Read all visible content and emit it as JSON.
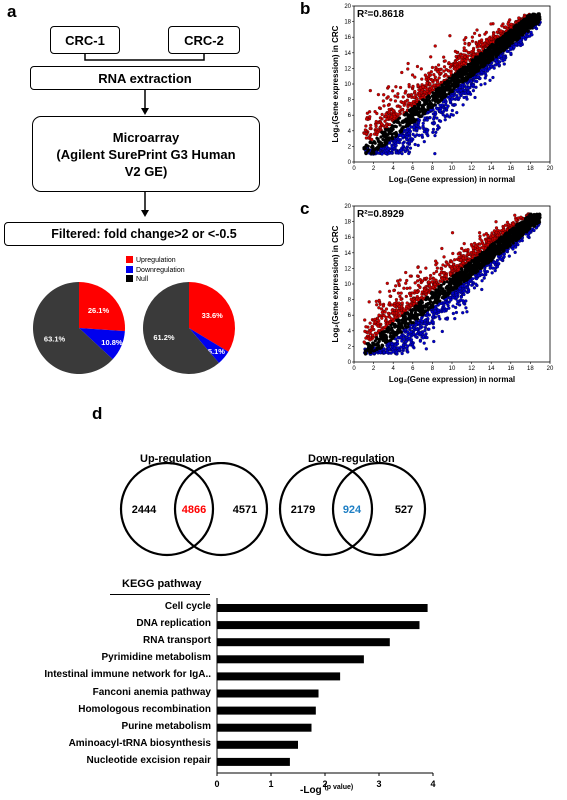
{
  "panel_labels": {
    "a": "a",
    "b": "b",
    "c": "c",
    "d": "d"
  },
  "flow": {
    "sample1": "CRC-1",
    "sample2": "CRC-2",
    "step1": "RNA extraction",
    "step2_line1": "Microarray",
    "step2_line2": "(Agilent SurePrint G3 Human",
    "step2_line3": "V2 GE)",
    "step3": "Filtered:  fold change>2 or <-0.5"
  },
  "legend": [
    {
      "label": "Upregulation",
      "color": "#ff0000"
    },
    {
      "label": "Downregulation",
      "color": "#0000ee"
    },
    {
      "label": "Null",
      "color": "#000000"
    }
  ],
  "chart_data": [
    {
      "type": "pie",
      "slices": [
        {
          "label": "Upregulation",
          "value": 26.1,
          "text": "26.1%",
          "color": "#ff0000"
        },
        {
          "label": "Downregulation",
          "value": 10.8,
          "text": "10.8%",
          "color": "#0000ee"
        },
        {
          "label": "Null",
          "value": 63.1,
          "text": "63.1%",
          "color": "#3a3a3a"
        }
      ]
    },
    {
      "type": "pie",
      "slices": [
        {
          "label": "Upregulation",
          "value": 33.6,
          "text": "33.6%",
          "color": "#ff0000"
        },
        {
          "label": "Downregulation",
          "value": 5.1,
          "text": "5.1%",
          "color": "#0000ee"
        },
        {
          "label": "Null",
          "value": 61.2,
          "text": "61.2%",
          "color": "#3a3a3a"
        }
      ]
    },
    {
      "type": "scatter",
      "annotation": "R²=0.8618",
      "xlabel": "Log₂(Gene expression) in normal",
      "ylabel": "Log₂(Gene expression) in CRC",
      "xlim": [
        0,
        20
      ],
      "ylim": [
        0,
        20
      ],
      "xticks": [
        0,
        2,
        4,
        6,
        8,
        10,
        12,
        14,
        16,
        18,
        20
      ],
      "yticks": [
        0,
        2,
        4,
        6,
        8,
        10,
        12,
        14,
        16,
        18,
        20
      ],
      "series": [
        {
          "name": "Upregulation",
          "color": "#cc0000"
        },
        {
          "name": "Downregulation",
          "color": "#0000cc"
        },
        {
          "name": "Null",
          "color": "#000000"
        }
      ]
    },
    {
      "type": "scatter",
      "annotation": "R²=0.8929",
      "xlabel": "Log₂(Gene expression) in normal",
      "ylabel": "Log₂(Gene expression) in CRC",
      "xlim": [
        0,
        20
      ],
      "ylim": [
        0,
        20
      ],
      "xticks": [
        0,
        2,
        4,
        6,
        8,
        10,
        12,
        14,
        16,
        18,
        20
      ],
      "yticks": [
        0,
        2,
        4,
        6,
        8,
        10,
        12,
        14,
        16,
        18,
        20
      ],
      "series": [
        {
          "name": "Upregulation",
          "color": "#cc0000"
        },
        {
          "name": "Downregulation",
          "color": "#0000cc"
        },
        {
          "name": "Null",
          "color": "#000000"
        }
      ]
    },
    {
      "type": "bar",
      "orientation": "horizontal",
      "title": "KEGG pathway",
      "xlabel": "-Log",
      "xlabel_sub": "(p value)",
      "xlim": [
        0,
        4
      ],
      "xticks": [
        0,
        1,
        2,
        3,
        4
      ],
      "categories": [
        "Cell cycle",
        "DNA replication",
        "RNA transport",
        "Pyrimidine metabolism",
        "Intestinal immune network for IgA..",
        "Fanconi anemia pathway",
        "Homologous recombination",
        "Purine metabolism",
        "Aminoacyl-tRNA biosynthesis",
        "Nucleotide excision repair"
      ],
      "values": [
        3.9,
        3.75,
        3.2,
        2.72,
        2.28,
        1.88,
        1.83,
        1.75,
        1.5,
        1.35
      ]
    }
  ],
  "venn": {
    "up": {
      "title": "Up-regulation",
      "left": "2444",
      "center": "4866",
      "right": "4571",
      "center_color": "#ff0000"
    },
    "down": {
      "title": "Down-regulation",
      "left": "2179",
      "center": "924",
      "right": "527",
      "center_color": "#1f7fc4"
    }
  }
}
